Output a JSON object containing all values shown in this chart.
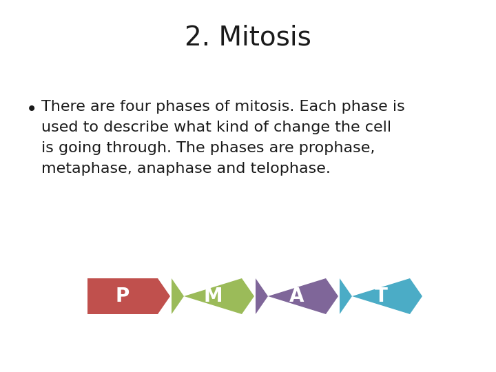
{
  "title": "2. Mitosis",
  "title_fontsize": 28,
  "background_color": "#ffffff",
  "bullet_text_line1": "There are four phases of mitosis. Each phase is",
  "bullet_text_line2": "used to describe what kind of change the cell",
  "bullet_text_line3": "is going through. The phases are prophase,",
  "bullet_text_line4": "metaphase, anaphase and telophase.",
  "bullet_fontsize": 16,
  "text_color": "#1a1a1a",
  "arrow_labels": [
    "P",
    "M",
    "A",
    "T"
  ],
  "arrow_colors": [
    "#c0504d",
    "#9bbb59",
    "#7f6699",
    "#4bacc6"
  ],
  "label_color": "#ffffff",
  "label_fontsize": 20
}
